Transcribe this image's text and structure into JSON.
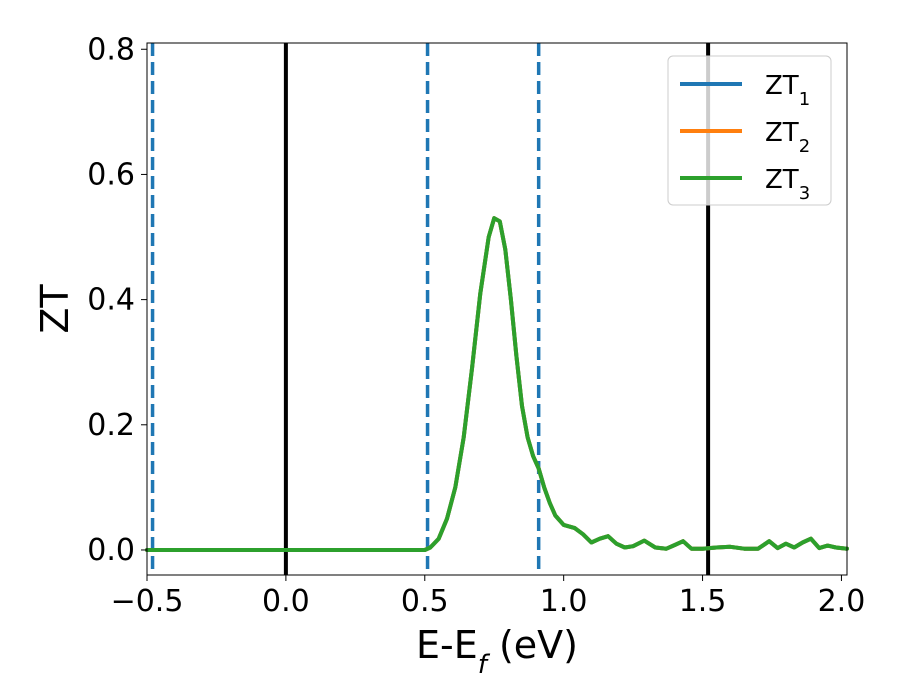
{
  "chart_data": {
    "type": "line",
    "title": "",
    "xlabel": "E-E",
    "xlabel_subscript": "f",
    "xlabel_unit": "(eV)",
    "ylabel": "ZT",
    "xlim": [
      -0.5,
      2.02
    ],
    "ylim": [
      -0.04,
      0.81
    ],
    "x_ticks": [
      -0.5,
      0.0,
      0.5,
      1.0,
      1.5,
      2.0
    ],
    "x_tick_labels": [
      "−0.5",
      "0.0",
      "0.5",
      "1.0",
      "1.5",
      "2.0"
    ],
    "y_ticks": [
      0.0,
      0.2,
      0.4,
      0.6,
      0.8
    ],
    "y_tick_labels": [
      "0.0",
      "0.2",
      "0.4",
      "0.6",
      "0.8"
    ],
    "grid": false,
    "legend_position": "top-right",
    "vertical_lines": [
      {
        "x": -0.48,
        "style": "dashed",
        "color": "#1f77b4"
      },
      {
        "x": 0.0,
        "style": "solid",
        "color": "#000000"
      },
      {
        "x": 0.51,
        "style": "dashed",
        "color": "#1f77b4"
      },
      {
        "x": 0.91,
        "style": "dashed",
        "color": "#1f77b4"
      },
      {
        "x": 1.52,
        "style": "solid",
        "color": "#000000"
      }
    ],
    "x": [
      -0.5,
      -0.3,
      -0.1,
      0.1,
      0.3,
      0.5,
      0.52,
      0.55,
      0.58,
      0.61,
      0.64,
      0.67,
      0.7,
      0.73,
      0.75,
      0.77,
      0.79,
      0.81,
      0.83,
      0.85,
      0.87,
      0.89,
      0.91,
      0.93,
      0.95,
      0.97,
      1.0,
      1.04,
      1.07,
      1.1,
      1.13,
      1.16,
      1.19,
      1.22,
      1.25,
      1.29,
      1.33,
      1.37,
      1.4,
      1.43,
      1.46,
      1.5,
      1.55,
      1.6,
      1.65,
      1.7,
      1.74,
      1.77,
      1.8,
      1.83,
      1.86,
      1.89,
      1.92,
      1.95,
      1.98,
      2.02
    ],
    "series": [
      {
        "name": "ZT",
        "subscript": "1",
        "color": "#1f77b4",
        "values": [
          0.0,
          0.0,
          0.0,
          0.0,
          0.0,
          0.0,
          0.004,
          0.018,
          0.05,
          0.1,
          0.18,
          0.29,
          0.41,
          0.5,
          0.53,
          0.525,
          0.48,
          0.4,
          0.31,
          0.23,
          0.18,
          0.15,
          0.13,
          0.1,
          0.075,
          0.055,
          0.04,
          0.035,
          0.025,
          0.012,
          0.018,
          0.022,
          0.01,
          0.004,
          0.006,
          0.015,
          0.004,
          0.002,
          0.008,
          0.014,
          0.002,
          0.002,
          0.004,
          0.005,
          0.002,
          0.002,
          0.014,
          0.003,
          0.01,
          0.004,
          0.012,
          0.018,
          0.003,
          0.007,
          0.004,
          0.002
        ]
      },
      {
        "name": "ZT",
        "subscript": "2",
        "color": "#ff7f0e",
        "values": [
          0.0,
          0.0,
          0.0,
          0.0,
          0.0,
          0.0,
          0.004,
          0.018,
          0.05,
          0.1,
          0.18,
          0.29,
          0.41,
          0.5,
          0.53,
          0.525,
          0.48,
          0.4,
          0.31,
          0.23,
          0.18,
          0.15,
          0.13,
          0.1,
          0.075,
          0.055,
          0.04,
          0.035,
          0.025,
          0.012,
          0.018,
          0.022,
          0.01,
          0.004,
          0.006,
          0.015,
          0.004,
          0.002,
          0.008,
          0.014,
          0.002,
          0.002,
          0.004,
          0.005,
          0.002,
          0.002,
          0.014,
          0.003,
          0.01,
          0.004,
          0.012,
          0.018,
          0.003,
          0.007,
          0.004,
          0.002
        ]
      },
      {
        "name": "ZT",
        "subscript": "3",
        "color": "#2ca02c",
        "values": [
          0.0,
          0.0,
          0.0,
          0.0,
          0.0,
          0.0,
          0.004,
          0.018,
          0.05,
          0.1,
          0.18,
          0.29,
          0.41,
          0.5,
          0.53,
          0.525,
          0.48,
          0.4,
          0.31,
          0.23,
          0.18,
          0.15,
          0.13,
          0.1,
          0.075,
          0.055,
          0.04,
          0.035,
          0.025,
          0.012,
          0.018,
          0.022,
          0.01,
          0.004,
          0.006,
          0.015,
          0.004,
          0.002,
          0.008,
          0.014,
          0.002,
          0.002,
          0.004,
          0.005,
          0.002,
          0.002,
          0.014,
          0.003,
          0.01,
          0.004,
          0.012,
          0.018,
          0.003,
          0.007,
          0.004,
          0.002
        ]
      }
    ]
  }
}
